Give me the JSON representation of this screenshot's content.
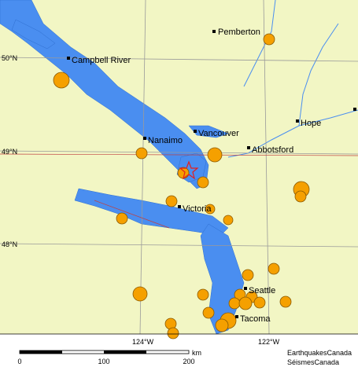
{
  "cities": [
    {
      "name": "Pemberton"
    },
    {
      "name": "Campbell River"
    },
    {
      "name": "Vancouver"
    },
    {
      "name": "Hope"
    },
    {
      "name": "Nanaimo"
    },
    {
      "name": "Abbotsford"
    },
    {
      "name": "Victoria"
    },
    {
      "name": "Seattle"
    },
    {
      "name": "Tacoma"
    }
  ],
  "graticule": {
    "latitudes": [
      "50°N",
      "49°N",
      "48°N"
    ],
    "longitudes": [
      "124°W",
      "122°W"
    ]
  },
  "scale": {
    "labels": [
      "0",
      "100",
      "200"
    ],
    "unit": "km"
  },
  "credits": [
    "EarthquakesCanada",
    "SéismesCanada"
  ]
}
